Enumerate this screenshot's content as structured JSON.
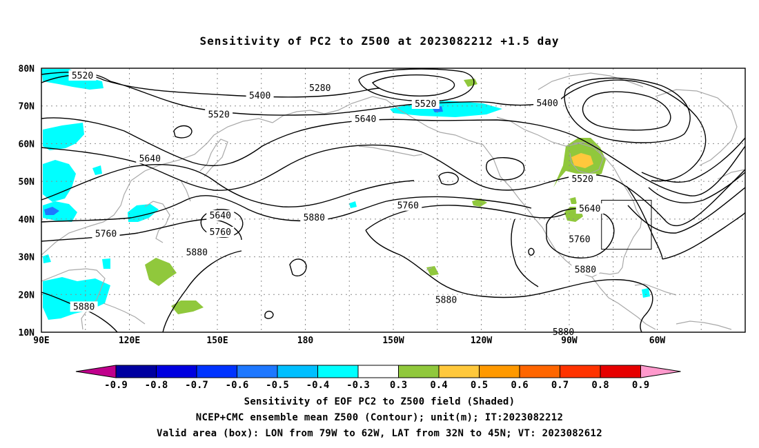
{
  "title": "Sensitivity of PC2 to Z500 at 2023082212 +1.5 day",
  "map": {
    "lat_labels": [
      "80N",
      "70N",
      "60N",
      "50N",
      "40N",
      "30N",
      "20N",
      "10N"
    ],
    "lon_labels": [
      "90E",
      "120E",
      "150E",
      "180",
      "150W",
      "120W",
      "90W",
      "60W"
    ],
    "contour_labels": [
      {
        "text": "5520",
        "lon": 104,
        "lat": 78
      },
      {
        "text": "5400",
        "lon": 164.5,
        "lat": 72.7
      },
      {
        "text": "5280",
        "lon": 185,
        "lat": 74.7
      },
      {
        "text": "5520",
        "lon": 221,
        "lat": 70.5
      },
      {
        "text": "5400",
        "lon": 262.5,
        "lat": 70.7
      },
      {
        "text": "5520",
        "lon": 150.5,
        "lat": 67.7
      },
      {
        "text": "5640",
        "lon": 200.5,
        "lat": 66.5
      },
      {
        "text": "5640",
        "lon": 127,
        "lat": 56
      },
      {
        "text": "5520",
        "lon": 274.5,
        "lat": 50.6
      },
      {
        "text": "5640",
        "lon": 277,
        "lat": 42.7
      },
      {
        "text": "5760",
        "lon": 215,
        "lat": 43.5
      },
      {
        "text": "5880",
        "lon": 183,
        "lat": 40.3
      },
      {
        "text": "5640",
        "lon": 151,
        "lat": 40.9
      },
      {
        "text": "5760",
        "lon": 151,
        "lat": 36.5
      },
      {
        "text": "5760",
        "lon": 112,
        "lat": 36
      },
      {
        "text": "5760",
        "lon": 273.5,
        "lat": 34.6
      },
      {
        "text": "5880",
        "lon": 143,
        "lat": 31.1
      },
      {
        "text": "5880",
        "lon": 275.5,
        "lat": 26.5
      },
      {
        "text": "5880",
        "lon": 104.5,
        "lat": 16.7
      },
      {
        "text": "5880",
        "lon": 228,
        "lat": 18.5
      },
      {
        "text": "5880",
        "lon": 268,
        "lat": 10
      }
    ],
    "valid_box": {
      "lon_min": 281,
      "lon_max": 298,
      "lat_min": 32,
      "lat_max": 45
    }
  },
  "colorbar": {
    "labels": [
      "-0.9",
      "-0.8",
      "-0.7",
      "-0.6",
      "-0.5",
      "-0.4",
      "-0.3",
      "0.3",
      "0.4",
      "0.5",
      "0.6",
      "0.7",
      "0.8",
      "0.9"
    ],
    "colors": [
      "#0000a0",
      "#0000e0",
      "#0033ff",
      "#1e78ff",
      "#00bfff",
      "#00ffff",
      "#ffffff",
      "#90c83c",
      "#ffc83c",
      "#ff9900",
      "#ff6600",
      "#ff3300",
      "#e60000"
    ],
    "low_arrow_color": "#c0008c",
    "high_arrow_color": "#ff99cc"
  },
  "footer": {
    "line1": "Sensitivity of EOF PC2 to Z500 field (Shaded)",
    "line2": "NCEP+CMC ensemble mean Z500 (Contour); unit(m); IT:2023082212",
    "line3": "Valid area (box): LON from 79W to 62W, LAT from 32N to 45N; VT: 2023082612"
  }
}
